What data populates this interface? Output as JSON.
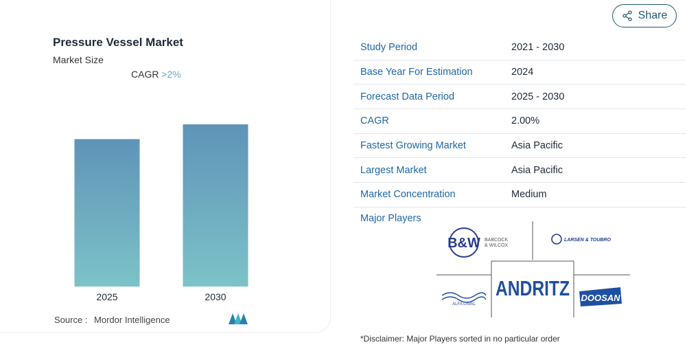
{
  "chart": {
    "title": "Pressure Vessel Market",
    "subtitle": "Market Size",
    "cagr_label": "CAGR",
    "cagr_value": ">2%",
    "source_label": "Source :",
    "source_value": "Mordor Intelligence"
  },
  "chart_data": {
    "type": "bar",
    "categories": [
      "2025",
      "2030"
    ],
    "values": [
      1.0,
      1.1
    ],
    "title": "Pressure Vessel Market",
    "subtitle": "Market Size",
    "colors": {
      "top": "#5f93b8",
      "bottom": "#7cc3c8"
    }
  },
  "share": {
    "label": "Share",
    "icon": "share-icon"
  },
  "table": {
    "rows": [
      {
        "key": "Study Period",
        "value": "2021 - 2030"
      },
      {
        "key": "Base Year For Estimation",
        "value": "2024"
      },
      {
        "key": "Forecast Data Period",
        "value": "2025 - 2030"
      },
      {
        "key": "CAGR",
        "value": "2.00%"
      },
      {
        "key": "Fastest Growing Market",
        "value": "Asia Pacific"
      },
      {
        "key": "Largest Market",
        "value": "Asia Pacific"
      },
      {
        "key": "Market Concentration",
        "value": "Medium"
      }
    ]
  },
  "players": {
    "label": "Major Players",
    "logos": {
      "bw_mark": "B&W",
      "bw_text1": "BABCOCK",
      "bw_text2": "& WILCOX",
      "lt": "LARSEN & TOUBRO",
      "andritz": "ANDRITZ",
      "alfa": "ALFA LAVAL",
      "doosan": "DOOSAN"
    },
    "disclaimer": "*Disclaimer: Major Players sorted in no particular order"
  }
}
